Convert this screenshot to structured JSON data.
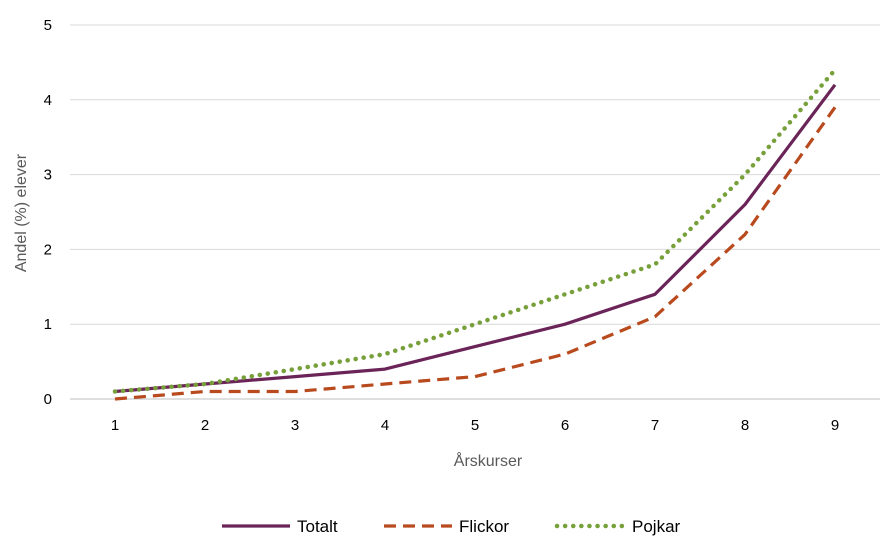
{
  "chart_data": {
    "type": "line",
    "title": "",
    "xlabel": "Årskurser",
    "ylabel": "Andel (%) elever",
    "categories": [
      "1",
      "2",
      "3",
      "4",
      "5",
      "6",
      "7",
      "8",
      "9"
    ],
    "ylim": [
      0,
      5
    ],
    "yticks": [
      "0",
      "1",
      "2",
      "3",
      "4",
      "5"
    ],
    "grid": true,
    "legend_position": "bottom",
    "series": [
      {
        "name": "Totalt",
        "color": "#6b2458",
        "style": "solid",
        "values": [
          0.1,
          0.2,
          0.3,
          0.4,
          0.7,
          1.0,
          1.4,
          2.6,
          4.2
        ]
      },
      {
        "name": "Flickor",
        "color": "#b84a1e",
        "style": "dashed",
        "values": [
          0.0,
          0.1,
          0.1,
          0.2,
          0.3,
          0.6,
          1.1,
          2.2,
          3.9
        ]
      },
      {
        "name": "Pojkar",
        "color": "#77a03a",
        "style": "dotted",
        "values": [
          0.1,
          0.2,
          0.4,
          0.6,
          1.0,
          1.4,
          1.8,
          3.0,
          4.4
        ]
      }
    ]
  }
}
